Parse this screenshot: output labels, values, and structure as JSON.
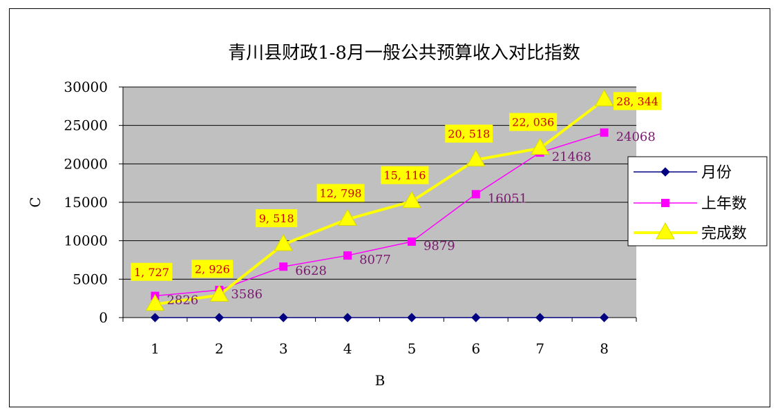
{
  "chart_data": {
    "type": "line",
    "title": "青川县财政1-8月一般公共预算收入对比指数",
    "xlabel": "B",
    "ylabel": "C",
    "categories": [
      "1",
      "2",
      "3",
      "4",
      "5",
      "6",
      "7",
      "8"
    ],
    "ylim": [
      0,
      30000
    ],
    "yticks": [
      "0",
      "5000",
      "10000",
      "15000",
      "20000",
      "25000",
      "30000"
    ],
    "grid": true,
    "legend_position": "right",
    "plot_background": "#c0c0c0",
    "series": [
      {
        "name": "月份",
        "values": [
          0,
          0,
          0,
          0,
          0,
          0,
          0,
          0
        ],
        "color": "#000080",
        "marker": "diamond"
      },
      {
        "name": "上年数",
        "values": [
          2826,
          3586,
          6628,
          8077,
          9879,
          16051,
          21468,
          24068
        ],
        "labels": [
          "2826",
          "3586",
          "6628",
          "8077",
          "9879",
          "16051",
          "21468",
          "24068"
        ],
        "color": "#ff00ff",
        "label_color": "#7a1a6f",
        "marker": "square"
      },
      {
        "name": "完成数",
        "values": [
          1727,
          2926,
          9518,
          12798,
          15116,
          20518,
          22036,
          28344
        ],
        "labels": [
          "1, 727",
          "2, 926",
          "9, 518",
          "12, 798",
          "15, 116",
          "20, 518",
          "22, 036",
          "28, 344"
        ],
        "color": "#ffff00",
        "label_color": "#cc0000",
        "label_background": "#ffff00",
        "marker": "triangle"
      }
    ]
  }
}
